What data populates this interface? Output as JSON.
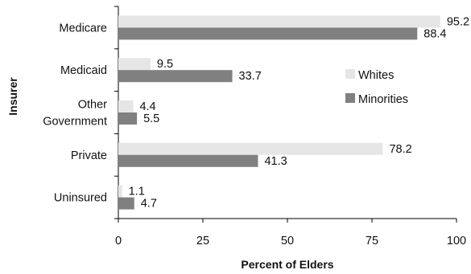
{
  "chart_data": {
    "type": "bar",
    "orientation": "horizontal",
    "categories": [
      [
        "Medicare"
      ],
      [
        "Medicaid"
      ],
      [
        "Other",
        "Government"
      ],
      [
        "Private"
      ],
      [
        "Uninsured"
      ]
    ],
    "series": [
      {
        "name": "Whites",
        "values": [
          95.2,
          9.5,
          4.4,
          78.2,
          1.1
        ],
        "labels": [
          "95.2",
          "9.5",
          "4.4",
          "78.2",
          "1.1"
        ],
        "color": "#e6e6e6"
      },
      {
        "name": "Minorities",
        "values": [
          88.4,
          33.7,
          5.5,
          41.3,
          4.7
        ],
        "labels": [
          "88.4",
          "33.7",
          "5.5",
          "41.3",
          "4.7"
        ],
        "color": "#808080"
      }
    ],
    "xlabel": "Percent of Elders",
    "ylabel": "Insurer",
    "xlim": [
      0,
      100
    ],
    "xticks": [
      "0",
      "25",
      "50",
      "75",
      "100"
    ],
    "grid": false,
    "legend_position": "right"
  }
}
